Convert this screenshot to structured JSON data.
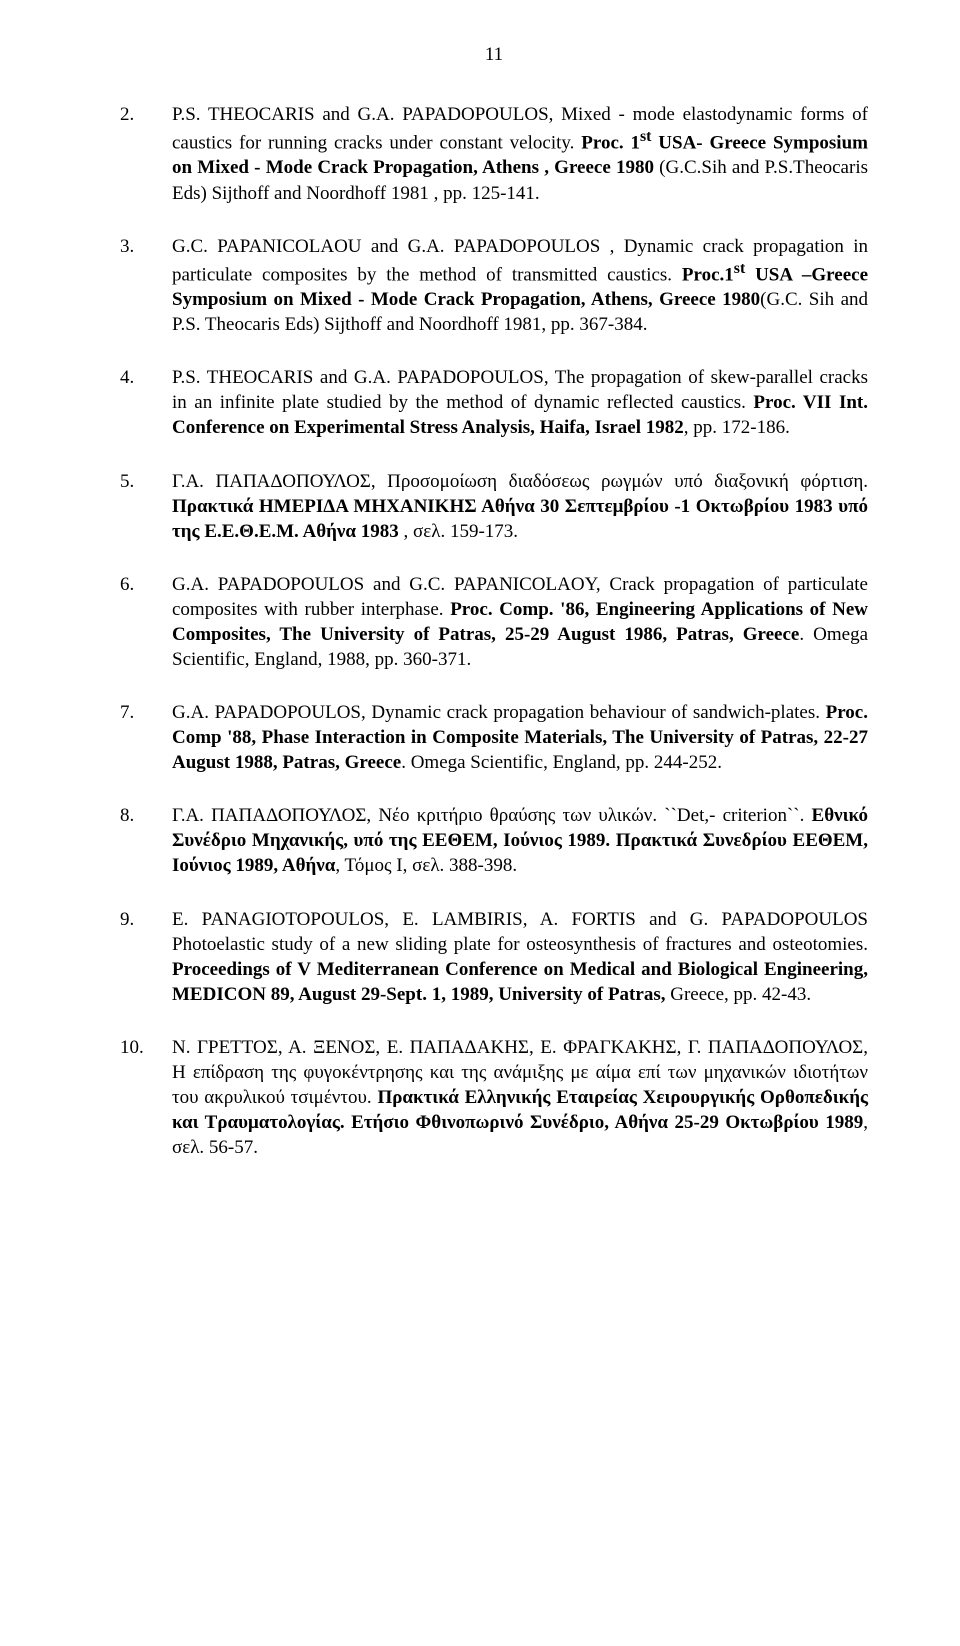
{
  "page_number": "11",
  "entries": [
    {
      "num": "2.",
      "segments": [
        {
          "text": "P.S. THEOCARIS and G.A. PAPADOPOULOS, Mixed - mode elastodynamic forms of caustics for  running cracks under constant velocity. "
        },
        {
          "text": "Proc.  1",
          "bold": true
        },
        {
          "text": "st",
          "bold": true,
          "sup": true
        },
        {
          "text": " USA- Greece  Symposium on Mixed - Mode  Crack Propagation, Athens , Greece 1980",
          "bold": true
        },
        {
          "text": "  (G.C.Sih and P.S.Theocaris Eds) Sijthoff and Noordhoff 1981 , pp. 125-141."
        }
      ]
    },
    {
      "num": "3.",
      "segments": [
        {
          "text": "G.C. PAPANICOLAOU and G.A. PAPADOPOULOS , Dynamic crack propagation in particulate composites by the method of transmitted caustics. "
        },
        {
          "text": "Proc.1",
          "bold": true
        },
        {
          "text": "st",
          "bold": true,
          "sup": true
        },
        {
          "text": " USA –Greece Symposium on Mixed  - Mode Crack Propagation, Athens, Greece 1980",
          "bold": true
        },
        {
          "text": "(G.C. Sih and P.S. Theocaris Eds) Sijthoff and Noordhoff 1981, pp. 367-384."
        }
      ]
    },
    {
      "num": "4.",
      "segments": [
        {
          "text": "P.S. THEOCARIS and G.A. PAPADOPOULOS, The propagation of skew-parallel cracks in an infinite plate studied by the method of dynamic reflected caustics. "
        },
        {
          "text": "Proc. VII Int. Conference on Experimental Stress Analysis, Haifa, Israel 1982",
          "bold": true
        },
        {
          "text": ", pp. 172-186."
        }
      ]
    },
    {
      "num": "5.",
      "segments": [
        {
          "text": "Γ.Α. ΠΑΠΑΔΟΠΟΥΛΟΣ, Προσομοίωση  διαδόσεως ρωγμών υπό διαξονική φόρτιση. "
        },
        {
          "text": "Πρακτικά   ΗΜΕΡΙΔΑ ΜΗΧΑΝΙΚΗΣ   Αθήνα 30 Σεπτεμβρίου -1  Οκτωβρίου 1983 υπό της  Ε.Ε.Θ.Ε.Μ. Αθήνα 1983",
          "bold": true
        },
        {
          "text": " , σελ. 159-173."
        }
      ]
    },
    {
      "num": "6.",
      "segments": [
        {
          "text": "G.A. PAPADOPOULOS and G.C. PAPANICOLAOY, Crack propagation of particulate composites with rubber interphase. "
        },
        {
          "text": "Proc. Comp. '86, Engineering Applications of New Composites, The University of Patras, 25-29 August 1986,  Patras, Greece",
          "bold": true
        },
        {
          "text": ". Omega Scientific, England, 1988, pp. 360-371."
        }
      ]
    },
    {
      "num": "7.",
      "segments": [
        {
          "text": "G.A. PAPADOPOULOS, Dynamic crack propagation behaviour of sandwich-plates. "
        },
        {
          "text": "Proc. Comp '88, Phase Interaction in Composite Materials, The University of Patras, 22-27 August 1988, Patras, Greece",
          "bold": true
        },
        {
          "text": ". Omega Scientific, England, pp. 244-252."
        }
      ]
    },
    {
      "num": "8.",
      "segments": [
        {
          "text": "Γ.Α. ΠΑΠΑΔΟΠΟΥΛΟΣ, Νέο κριτήριο θραύσης των υλικών. ``Det,- criterion``. "
        },
        {
          "text": "Εθνικό Συνέδριο Μηχανικής, υπό της ΕΕΘΕΜ, Ιούνιος 1989. Πρακτικά Συνεδρίου ΕΕΘΕΜ, Ιούνιος 1989, Αθήνα",
          "bold": true
        },
        {
          "text": ", Τόμος Ι, σελ. 388-398."
        }
      ]
    },
    {
      "num": "9.",
      "segments": [
        {
          "text": "E. PANAGIOTOPOULOS, E. LAMBIRIS, A. FORTIS and G. PAPADOPOULOS Photoelastic study of a new sliding plate for osteosynthesis of fractures and osteotomies. "
        },
        {
          "text": "Proceedings of V Mediterranean Conference on Medical and        Biological Engineering, MEDICON 89, August 29-Sept. 1, 1989, University of  Patras,",
          "bold": true
        },
        {
          "text": " Greece, pp. 42-43."
        }
      ]
    },
    {
      "num": "10.",
      "segments": [
        {
          "text": "Ν. ΓΡΕΤΤΟΣ, Α. ΞΕΝΟΣ, Ε. ΠΑΠΑΔΑΚΗΣ, Ε. ΦΡΑΓΚΑΚΗΣ, Γ. ΠΑΠΑΔΟΠΟΥΛΟΣ, Η επίδραση της φυγοκέντρησης και της ανάμιξης με αίμα επί των μηχανικών ιδιοτήτων του ακρυλικού τσιμέντου. "
        },
        {
          "text": "Πρακτικά Ελληνικής Εταιρείας Χειρουργικής Ορθοπεδικής και Τραυματολογίας. Ετήσιο Φθινοπωρινό Συνέδριο, Αθήνα   25-29 Οκτωβρίου 1989",
          "bold": true
        },
        {
          "text": ", σελ. 56-57."
        }
      ]
    }
  ]
}
